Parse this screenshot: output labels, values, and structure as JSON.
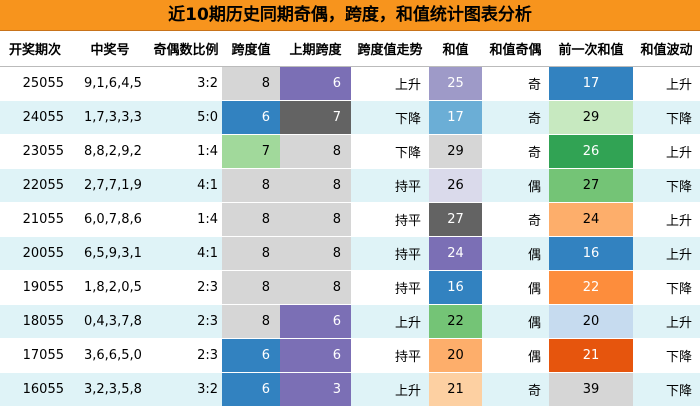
{
  "title": "近10期历史同期奇偶，跨度，和值统计图表分析",
  "headers": [
    "开奖期次",
    "中奖号",
    "奇偶数比例",
    "跨度值",
    "上期跨度",
    "跨度值走势",
    "和值",
    "和值奇偶",
    "前一次和值",
    "和值波动"
  ],
  "rows": [
    {
      "period": "25055",
      "nums": "9,1,6,4,5",
      "ratio": "3:2",
      "span": "8",
      "pspan": "6",
      "trend": "上升",
      "sum": "25",
      "parity": "奇",
      "prevsum": "17",
      "sumtrend": "上升"
    },
    {
      "period": "24055",
      "nums": "1,7,3,3,3",
      "ratio": "5:0",
      "span": "6",
      "pspan": "7",
      "trend": "下降",
      "sum": "17",
      "parity": "奇",
      "prevsum": "29",
      "sumtrend": "下降"
    },
    {
      "period": "23055",
      "nums": "8,8,2,9,2",
      "ratio": "1:4",
      "span": "7",
      "pspan": "8",
      "trend": "下降",
      "sum": "29",
      "parity": "奇",
      "prevsum": "26",
      "sumtrend": "上升"
    },
    {
      "period": "22055",
      "nums": "2,7,7,1,9",
      "ratio": "4:1",
      "span": "8",
      "pspan": "8",
      "trend": "持平",
      "sum": "26",
      "parity": "偶",
      "prevsum": "27",
      "sumtrend": "下降"
    },
    {
      "period": "21055",
      "nums": "6,0,7,8,6",
      "ratio": "1:4",
      "span": "8",
      "pspan": "8",
      "trend": "持平",
      "sum": "27",
      "parity": "奇",
      "prevsum": "24",
      "sumtrend": "上升"
    },
    {
      "period": "20055",
      "nums": "6,5,9,3,1",
      "ratio": "4:1",
      "span": "8",
      "pspan": "8",
      "trend": "持平",
      "sum": "24",
      "parity": "偶",
      "prevsum": "16",
      "sumtrend": "上升"
    },
    {
      "period": "19055",
      "nums": "1,8,2,0,5",
      "ratio": "2:3",
      "span": "8",
      "pspan": "8",
      "trend": "持平",
      "sum": "16",
      "parity": "偶",
      "prevsum": "22",
      "sumtrend": "下降"
    },
    {
      "period": "18055",
      "nums": "0,4,3,7,8",
      "ratio": "2:3",
      "span": "8",
      "pspan": "6",
      "trend": "上升",
      "sum": "22",
      "parity": "偶",
      "prevsum": "20",
      "sumtrend": "上升"
    },
    {
      "period": "17055",
      "nums": "3,6,6,5,0",
      "ratio": "2:3",
      "span": "6",
      "pspan": "6",
      "trend": "持平",
      "sum": "20",
      "parity": "偶",
      "prevsum": "21",
      "sumtrend": "下降"
    },
    {
      "period": "16055",
      "nums": "3,2,3,5,8",
      "ratio": "3:2",
      "span": "6",
      "pspan": "3",
      "trend": "上升",
      "sum": "21",
      "parity": "奇",
      "prevsum": "39",
      "sumtrend": "下降"
    }
  ],
  "cell_colors": {
    "span": [
      "#d6d6d6",
      "#3282c0",
      "#a1d99b",
      "#d6d6d6",
      "#d6d6d6",
      "#d6d6d6",
      "#d6d6d6",
      "#d6d6d6",
      "#3282c0",
      "#3282c0"
    ],
    "pspan": [
      "#7b6fb5",
      "#636363",
      "#d6d6d6",
      "#d6d6d6",
      "#d6d6d6",
      "#d6d6d6",
      "#d6d6d6",
      "#7b6fb5",
      "#7b6fb5",
      "#7b6fb5"
    ],
    "sum": [
      "#9e9ac8",
      "#6baed6",
      "#d6d6d6",
      "#dadaeb",
      "#636363",
      "#7b6fb5",
      "#3282c0",
      "#74c476",
      "#fdae6b",
      "#fdd0a2"
    ],
    "prevsum": [
      "#3282c0",
      "#c7e9c0",
      "#31a354",
      "#74c476",
      "#fdae6b",
      "#3282c0",
      "#fd8d3c",
      "#c6dbef",
      "#e6550d",
      "#d6d6d6"
    ]
  },
  "dark_text": {
    "span": [
      false,
      true,
      false,
      false,
      false,
      false,
      false,
      false,
      true,
      true
    ],
    "pspan": [
      true,
      true,
      false,
      false,
      false,
      false,
      false,
      true,
      true,
      true
    ],
    "sum": [
      true,
      true,
      false,
      false,
      true,
      true,
      true,
      false,
      false,
      false
    ],
    "prevsum": [
      true,
      false,
      true,
      false,
      false,
      true,
      true,
      false,
      true,
      false
    ]
  }
}
